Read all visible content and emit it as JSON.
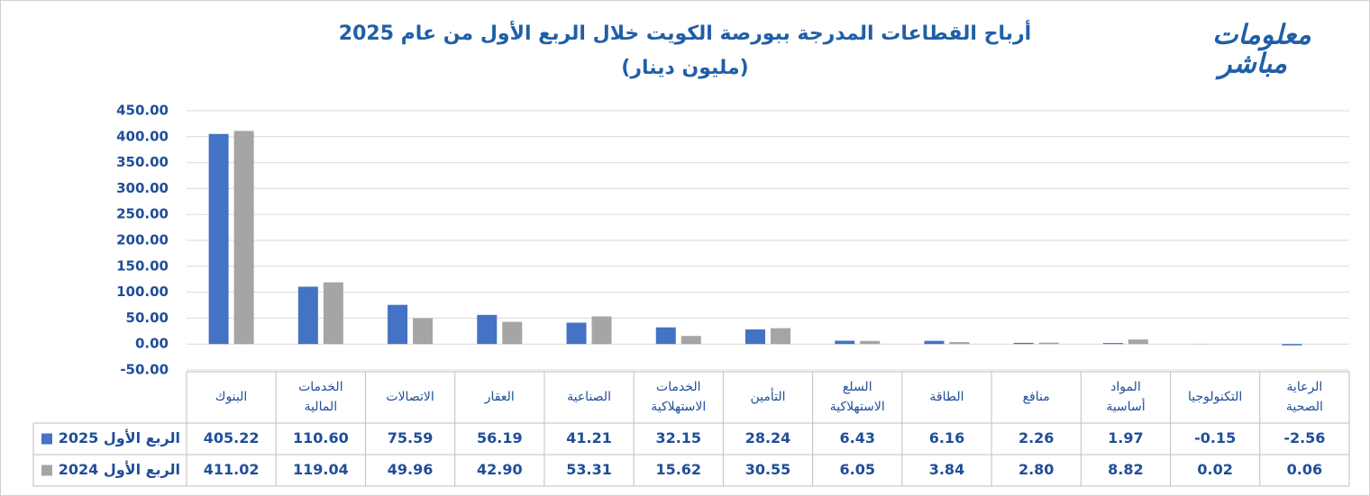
{
  "chart_data": {
    "type": "bar",
    "title": "أرباح القطاعات المدرجة ببورصة الكويت خلال الربع الأول من عام 2025",
    "subtitle": "(مليون دينار)",
    "logo": [
      "معلومات",
      "مباشر"
    ],
    "categories": [
      [
        "البنوك"
      ],
      [
        "الخدمات",
        "المالية"
      ],
      [
        "الاتصالات"
      ],
      [
        "العقار"
      ],
      [
        "الصناعية"
      ],
      [
        "الخدمات",
        "الاستهلاكية"
      ],
      [
        "التأمين"
      ],
      [
        "السلع",
        "الاستهلاكية"
      ],
      [
        "الطاقة"
      ],
      [
        "منافع"
      ],
      [
        "المواد",
        "أساسية"
      ],
      [
        "التكنولوجيا"
      ],
      [
        "الرعاية",
        "الصحية"
      ]
    ],
    "series": [
      {
        "name": "الربع الأول 2025",
        "color": "#4472c4",
        "values": [
          405.22,
          110.6,
          75.59,
          56.19,
          41.21,
          32.15,
          28.24,
          6.43,
          6.16,
          2.26,
          1.97,
          -0.15,
          -2.56
        ],
        "value_labels": [
          "405.22",
          "110.60",
          "75.59",
          "56.19",
          "41.21",
          "32.15",
          "28.24",
          "6.43",
          "6.16",
          "2.26",
          "1.97",
          "-0.15",
          "-2.56"
        ]
      },
      {
        "name": "الربع الأول 2024",
        "color": "#a5a5a5",
        "values": [
          411.02,
          119.04,
          49.96,
          42.9,
          53.31,
          15.62,
          30.55,
          6.05,
          3.84,
          2.8,
          8.82,
          0.02,
          0.06
        ],
        "value_labels": [
          "411.02",
          "119.04",
          "49.96",
          "42.90",
          "53.31",
          "15.62",
          "30.55",
          "6.05",
          "3.84",
          "2.80",
          "8.82",
          "0.02",
          "0.06"
        ]
      }
    ],
    "ylim": [
      -50,
      450
    ],
    "yticks": [
      {
        "value": -50,
        "label": "-50.00"
      },
      {
        "value": 0,
        "label": "0.00"
      },
      {
        "value": 50,
        "label": "50.00"
      },
      {
        "value": 100,
        "label": "100.00"
      },
      {
        "value": 150,
        "label": "150.00"
      },
      {
        "value": 200,
        "label": "200.00"
      },
      {
        "value": 250,
        "label": "250.00"
      },
      {
        "value": 300,
        "label": "300.00"
      },
      {
        "value": 350,
        "label": "350.00"
      },
      {
        "value": 400,
        "label": "400.00"
      },
      {
        "value": 450,
        "label": "450.00"
      }
    ],
    "grid": true
  }
}
